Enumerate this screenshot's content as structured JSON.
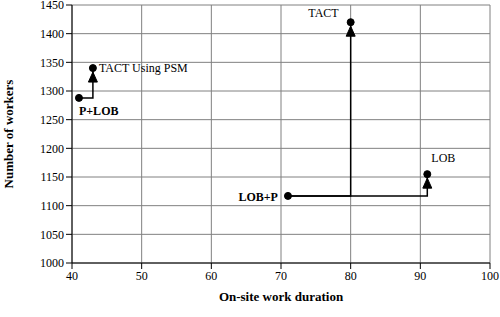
{
  "chart_data": {
    "type": "scatter",
    "x_label": "On-site work duration",
    "y_label": "Number of workers",
    "xlim": [
      40,
      100
    ],
    "xticks": [
      40,
      50,
      60,
      70,
      80,
      90,
      100
    ],
    "ylim": [
      1000,
      1450
    ],
    "yticks": [
      1000,
      1050,
      1100,
      1150,
      1200,
      1250,
      1300,
      1350,
      1400,
      1450
    ],
    "grid": true,
    "color": "#000000",
    "marker": "circle",
    "points": [
      {
        "label": "P+LOB",
        "x": 41,
        "y": 1288
      },
      {
        "label": "TACT Using PSM",
        "x": 43,
        "y": 1340
      },
      {
        "label": "TACT",
        "x": 80,
        "y": 1420
      },
      {
        "label": "LOB",
        "x": 91,
        "y": 1155
      },
      {
        "label": "LOB+P",
        "x": 71,
        "y": 1117
      }
    ],
    "arrows": [
      {
        "from": "P+LOB",
        "to": "TACT Using PSM"
      },
      {
        "from": "LOB+P",
        "to": "TACT"
      },
      {
        "from": "LOB+P",
        "to": "LOB"
      }
    ]
  }
}
